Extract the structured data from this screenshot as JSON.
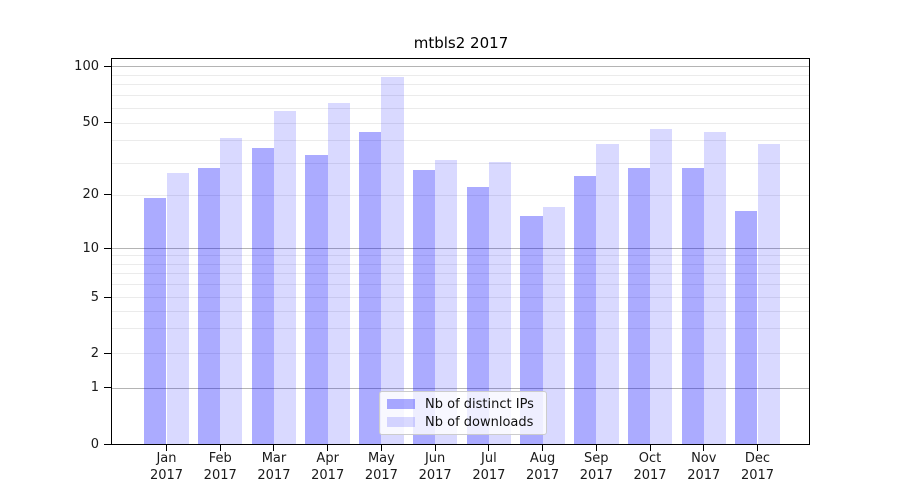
{
  "chart_data": {
    "type": "bar",
    "title": "mtbls2 2017",
    "yscale": "symlog (log above 1, linear 0-1)",
    "categories": [
      "Jan 2017",
      "Feb 2017",
      "Mar 2017",
      "Apr 2017",
      "May 2017",
      "Jun 2017",
      "Jul 2017",
      "Aug 2017",
      "Sep 2017",
      "Oct 2017",
      "Nov 2017",
      "Dec 2017"
    ],
    "series": [
      {
        "name": "Nb of distinct IPs",
        "color": "rgba(0,0,255,0.33)",
        "values": [
          19,
          28,
          36,
          33,
          44,
          27,
          22,
          15,
          25,
          28,
          28,
          16
        ]
      },
      {
        "name": "Nb of downloads",
        "color": "rgba(0,0,255,0.15)",
        "values": [
          26,
          41,
          57,
          63,
          87,
          31,
          30,
          17,
          38,
          46,
          44,
          38
        ]
      }
    ],
    "ytick_labels": [
      "0",
      "1",
      "2",
      "5",
      "10",
      "20",
      "50",
      "100"
    ],
    "ylim": [
      0,
      110
    ],
    "grid": true,
    "legend_position": "lower center, inside axes"
  }
}
